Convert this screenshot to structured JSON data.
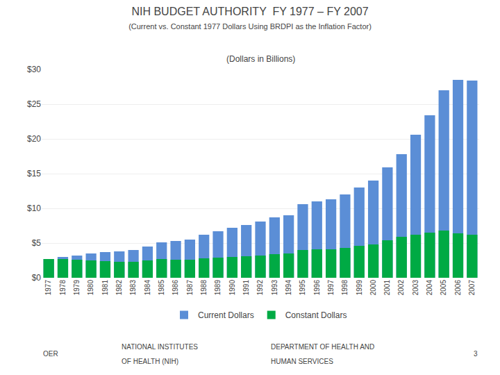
{
  "chart_data": {
    "type": "bar",
    "title": "NIH BUDGET AUTHORITY  FY 1977 – FY 2007",
    "subtitle": "(Current vs. Constant 1977 Dollars Using BRDPI as the Inflation Factor)",
    "annotations": [
      "(Dollars in Billions)",
      "OER",
      "NATIONAL INSTITUTES",
      "OF HEALTH (NIH)",
      "DEPARTMENT OF HEALTH AND",
      "HUMAN SERVICES",
      "3"
    ],
    "categories": [
      "1977",
      "1978",
      "1979",
      "1980",
      "1981",
      "1982",
      "1983",
      "1984",
      "1985",
      "1986",
      "1987",
      "1988",
      "1989",
      "1990",
      "1991",
      "1992",
      "1993",
      "1994",
      "1995",
      "1996",
      "1997",
      "1998",
      "1999",
      "2000",
      "2001",
      "2002",
      "2003",
      "2004",
      "2005",
      "2006",
      "2007"
    ],
    "series": [
      {
        "name": "Current Dollars",
        "color": "#5B8ED6",
        "values": [
          2.7,
          3.0,
          3.2,
          3.5,
          3.7,
          3.8,
          4.0,
          4.5,
          5.1,
          5.3,
          5.5,
          6.2,
          6.7,
          7.2,
          7.6,
          8.1,
          8.7,
          9.0,
          10.6,
          11.0,
          11.3,
          12.0,
          13.0,
          14.0,
          15.9,
          17.8,
          20.6,
          23.4,
          27.0,
          28.5,
          28.4
        ]
      },
      {
        "name": "Constant Dollars",
        "color": "#00AA44",
        "values": [
          2.7,
          2.7,
          2.6,
          2.5,
          2.4,
          2.3,
          2.3,
          2.5,
          2.7,
          2.6,
          2.6,
          2.8,
          2.9,
          3.0,
          3.1,
          3.2,
          3.4,
          3.5,
          4.0,
          4.1,
          4.1,
          4.3,
          4.6,
          4.8,
          5.4,
          5.9,
          6.2,
          6.5,
          6.8,
          6.4,
          6.2
        ]
      }
    ],
    "ylim": [
      0,
      30
    ],
    "yticks": [
      {
        "value": 0,
        "label": "$0"
      },
      {
        "value": 5,
        "label": "$5"
      },
      {
        "value": 10,
        "label": "$10"
      },
      {
        "value": 15,
        "label": "$15"
      },
      {
        "value": 20,
        "label": "$20"
      },
      {
        "value": 25,
        "label": "$25"
      },
      {
        "value": 30,
        "label": "$30"
      }
    ],
    "grid": true,
    "legend": "bottom"
  }
}
